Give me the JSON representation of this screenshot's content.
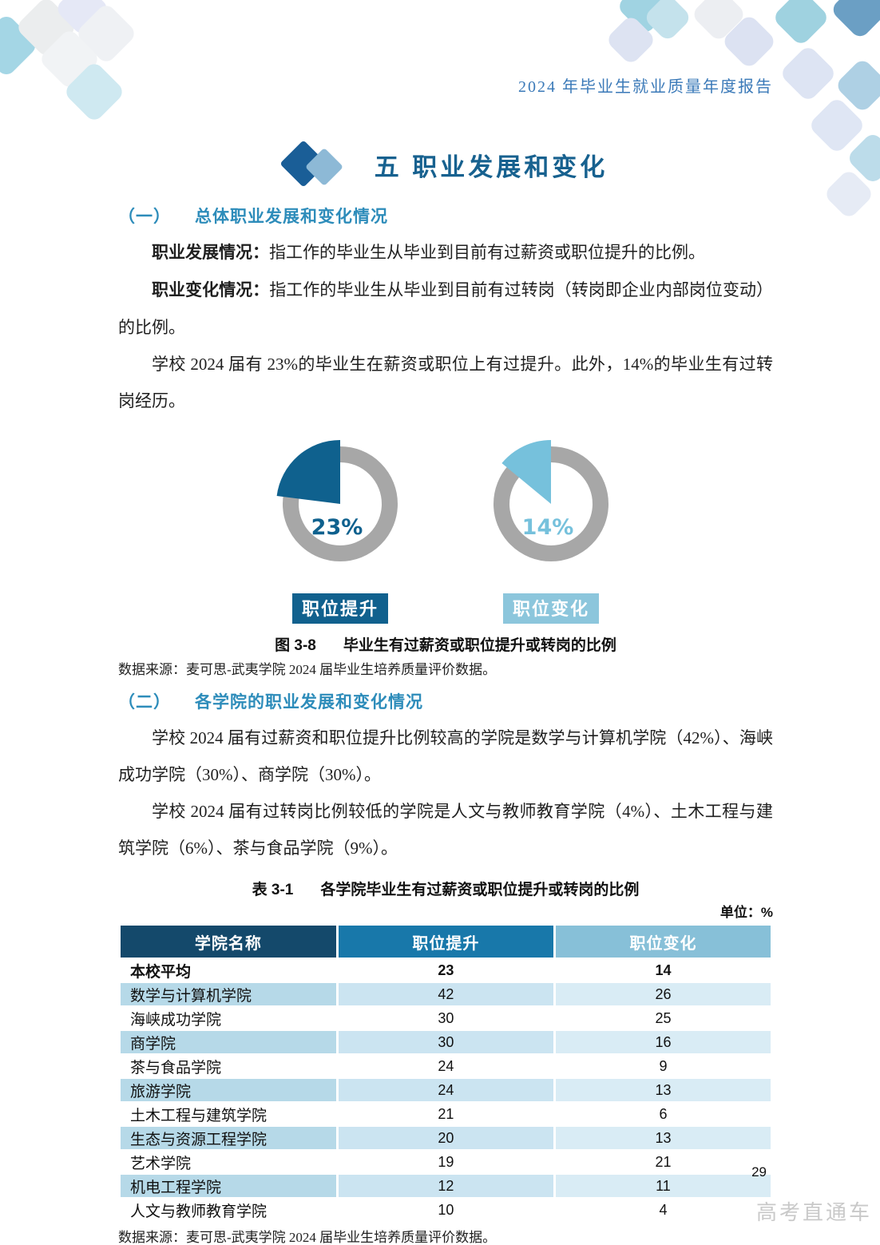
{
  "header": {
    "report_title": "2024 年毕业生就业质量年度报告"
  },
  "title": {
    "text": "五 职业发展和变化"
  },
  "section1": {
    "num": "（一）",
    "heading": "总体职业发展和变化情况",
    "p1_lead": "职业发展情况：",
    "p1_text": "指工作的毕业生从毕业到目前有过薪资或职位提升的比例。",
    "p2_lead": "职业变化情况：",
    "p2_text": "指工作的毕业生从毕业到目前有过转岗（转岗即企业内部岗位变动）的比例。",
    "p3": "学校 2024 届有 23%的毕业生在薪资或职位上有过提升。此外，14%的毕业生有过转岗经历。"
  },
  "chart_data": {
    "type": "pie",
    "style": "donut, slice starts at 12 o'clock and sweeps counterclockwise",
    "ring_color": "#a7a7a7",
    "charts": [
      {
        "label": "职位提升",
        "value": 23,
        "percent_label": "23%",
        "color": "#0f618e",
        "badge_color": "#11618e"
      },
      {
        "label": "职位变化",
        "value": 14,
        "percent_label": "14%",
        "color": "#76c1dc",
        "badge_color": "#8cc6dc"
      }
    ]
  },
  "figure": {
    "caption_num": "图 3-8",
    "caption_text": "毕业生有过薪资或职位提升或转岗的比例",
    "source": "数据来源：麦可思-武夷学院 2024 届毕业生培养质量评价数据。"
  },
  "section2": {
    "num": "（二）",
    "heading": "各学院的职业发展和变化情况",
    "p1": "学校 2024 届有过薪资和职位提升比例较高的学院是数学与计算机学院（42%）、海峡成功学院（30%）、商学院（30%）。",
    "p2": "学校 2024 届有过转岗比例较低的学院是人文与教师教育学院（4%）、土木工程与建筑学院（6%）、茶与食品学院（9%）。"
  },
  "table": {
    "caption_num": "表 3-1",
    "caption_text": "各学院毕业生有过薪资或职位提升或转岗的比例",
    "unit_label": "单位：%",
    "columns": [
      "学院名称",
      "职位提升",
      "职位变化"
    ],
    "rows": [
      {
        "name": "本校平均",
        "promotion": "23",
        "change": "14",
        "bold": true
      },
      {
        "name": "数学与计算机学院",
        "promotion": "42",
        "change": "26"
      },
      {
        "name": "海峡成功学院",
        "promotion": "30",
        "change": "25"
      },
      {
        "name": "商学院",
        "promotion": "30",
        "change": "16"
      },
      {
        "name": "茶与食品学院",
        "promotion": "24",
        "change": "9"
      },
      {
        "name": "旅游学院",
        "promotion": "24",
        "change": "13"
      },
      {
        "name": "土木工程与建筑学院",
        "promotion": "21",
        "change": "6"
      },
      {
        "name": "生态与资源工程学院",
        "promotion": "20",
        "change": "13"
      },
      {
        "name": "艺术学院",
        "promotion": "19",
        "change": "21"
      },
      {
        "name": "机电工程学院",
        "promotion": "12",
        "change": "11"
      },
      {
        "name": "人文与教师教育学院",
        "promotion": "10",
        "change": "4"
      }
    ],
    "source": "数据来源：麦可思-武夷学院 2024 届毕业生培养质量评价数据。"
  },
  "footer": {
    "page_number": "29",
    "watermark": "高考直通车"
  },
  "colors": {
    "accent_blue": "#17618f",
    "heading_blue": "#2d8cba",
    "header_text_blue": "#3a79b8",
    "table_header_col1": "#14496b",
    "table_header_col2": "#1878aa",
    "table_header_col3": "#87c0d8",
    "stripe_col1": "#b6d9e8",
    "stripe_col2": "#cbe4f1",
    "stripe_col3": "#d9ecf5"
  }
}
